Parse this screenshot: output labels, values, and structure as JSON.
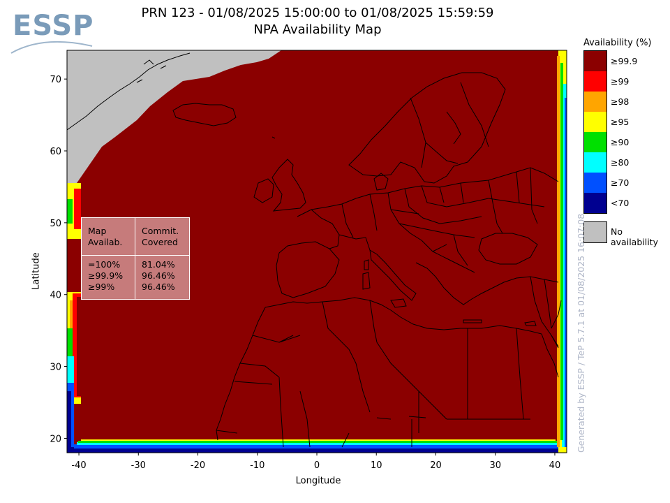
{
  "logo": {
    "text": "ESSP"
  },
  "title": {
    "line1": "PRN 123 - 01/08/2025 15:00:00 to 01/08/2025 15:59:59",
    "line2": "NPA Availability Map"
  },
  "axes": {
    "xlabel": "Longitude",
    "ylabel": "Latitude",
    "xlim": [
      -42,
      42
    ],
    "ylim": [
      18,
      74
    ],
    "xticks": [
      -40,
      -30,
      -20,
      -10,
      0,
      10,
      20,
      30,
      40
    ],
    "yticks": [
      20,
      30,
      40,
      50,
      60,
      70
    ]
  },
  "stats": {
    "header_left": "Map\nAvailab.",
    "header_right": "Commit.\nCovered",
    "rows_left": "=100%\n≥99.9%\n≥99%",
    "rows_right": "81.04%\n96.46%\n96.46%"
  },
  "legend": {
    "title": "Availability (%)",
    "items": [
      {
        "label": "≥99.9",
        "color": "#8b0000"
      },
      {
        "label": "≥99",
        "color": "#ff0000"
      },
      {
        "label": "≥98",
        "color": "#ffa500"
      },
      {
        "label": "≥95",
        "color": "#ffff00"
      },
      {
        "label": "≥90",
        "color": "#00e000"
      },
      {
        "label": "≥80",
        "color": "#00ffff"
      },
      {
        "label": "≥70",
        "color": "#0050ff"
      },
      {
        "label": "<70",
        "color": "#000090"
      }
    ],
    "no_availability": {
      "label": "No availability",
      "color": "#c0c0c0"
    }
  },
  "credit": "Generated by ESSP / TeP 5.7.1 at 01/08/2025 16:07:08",
  "colors": {
    "map_fill": "#8b0000",
    "no_data": "#c0c0c0",
    "coastline": "#000000"
  }
}
